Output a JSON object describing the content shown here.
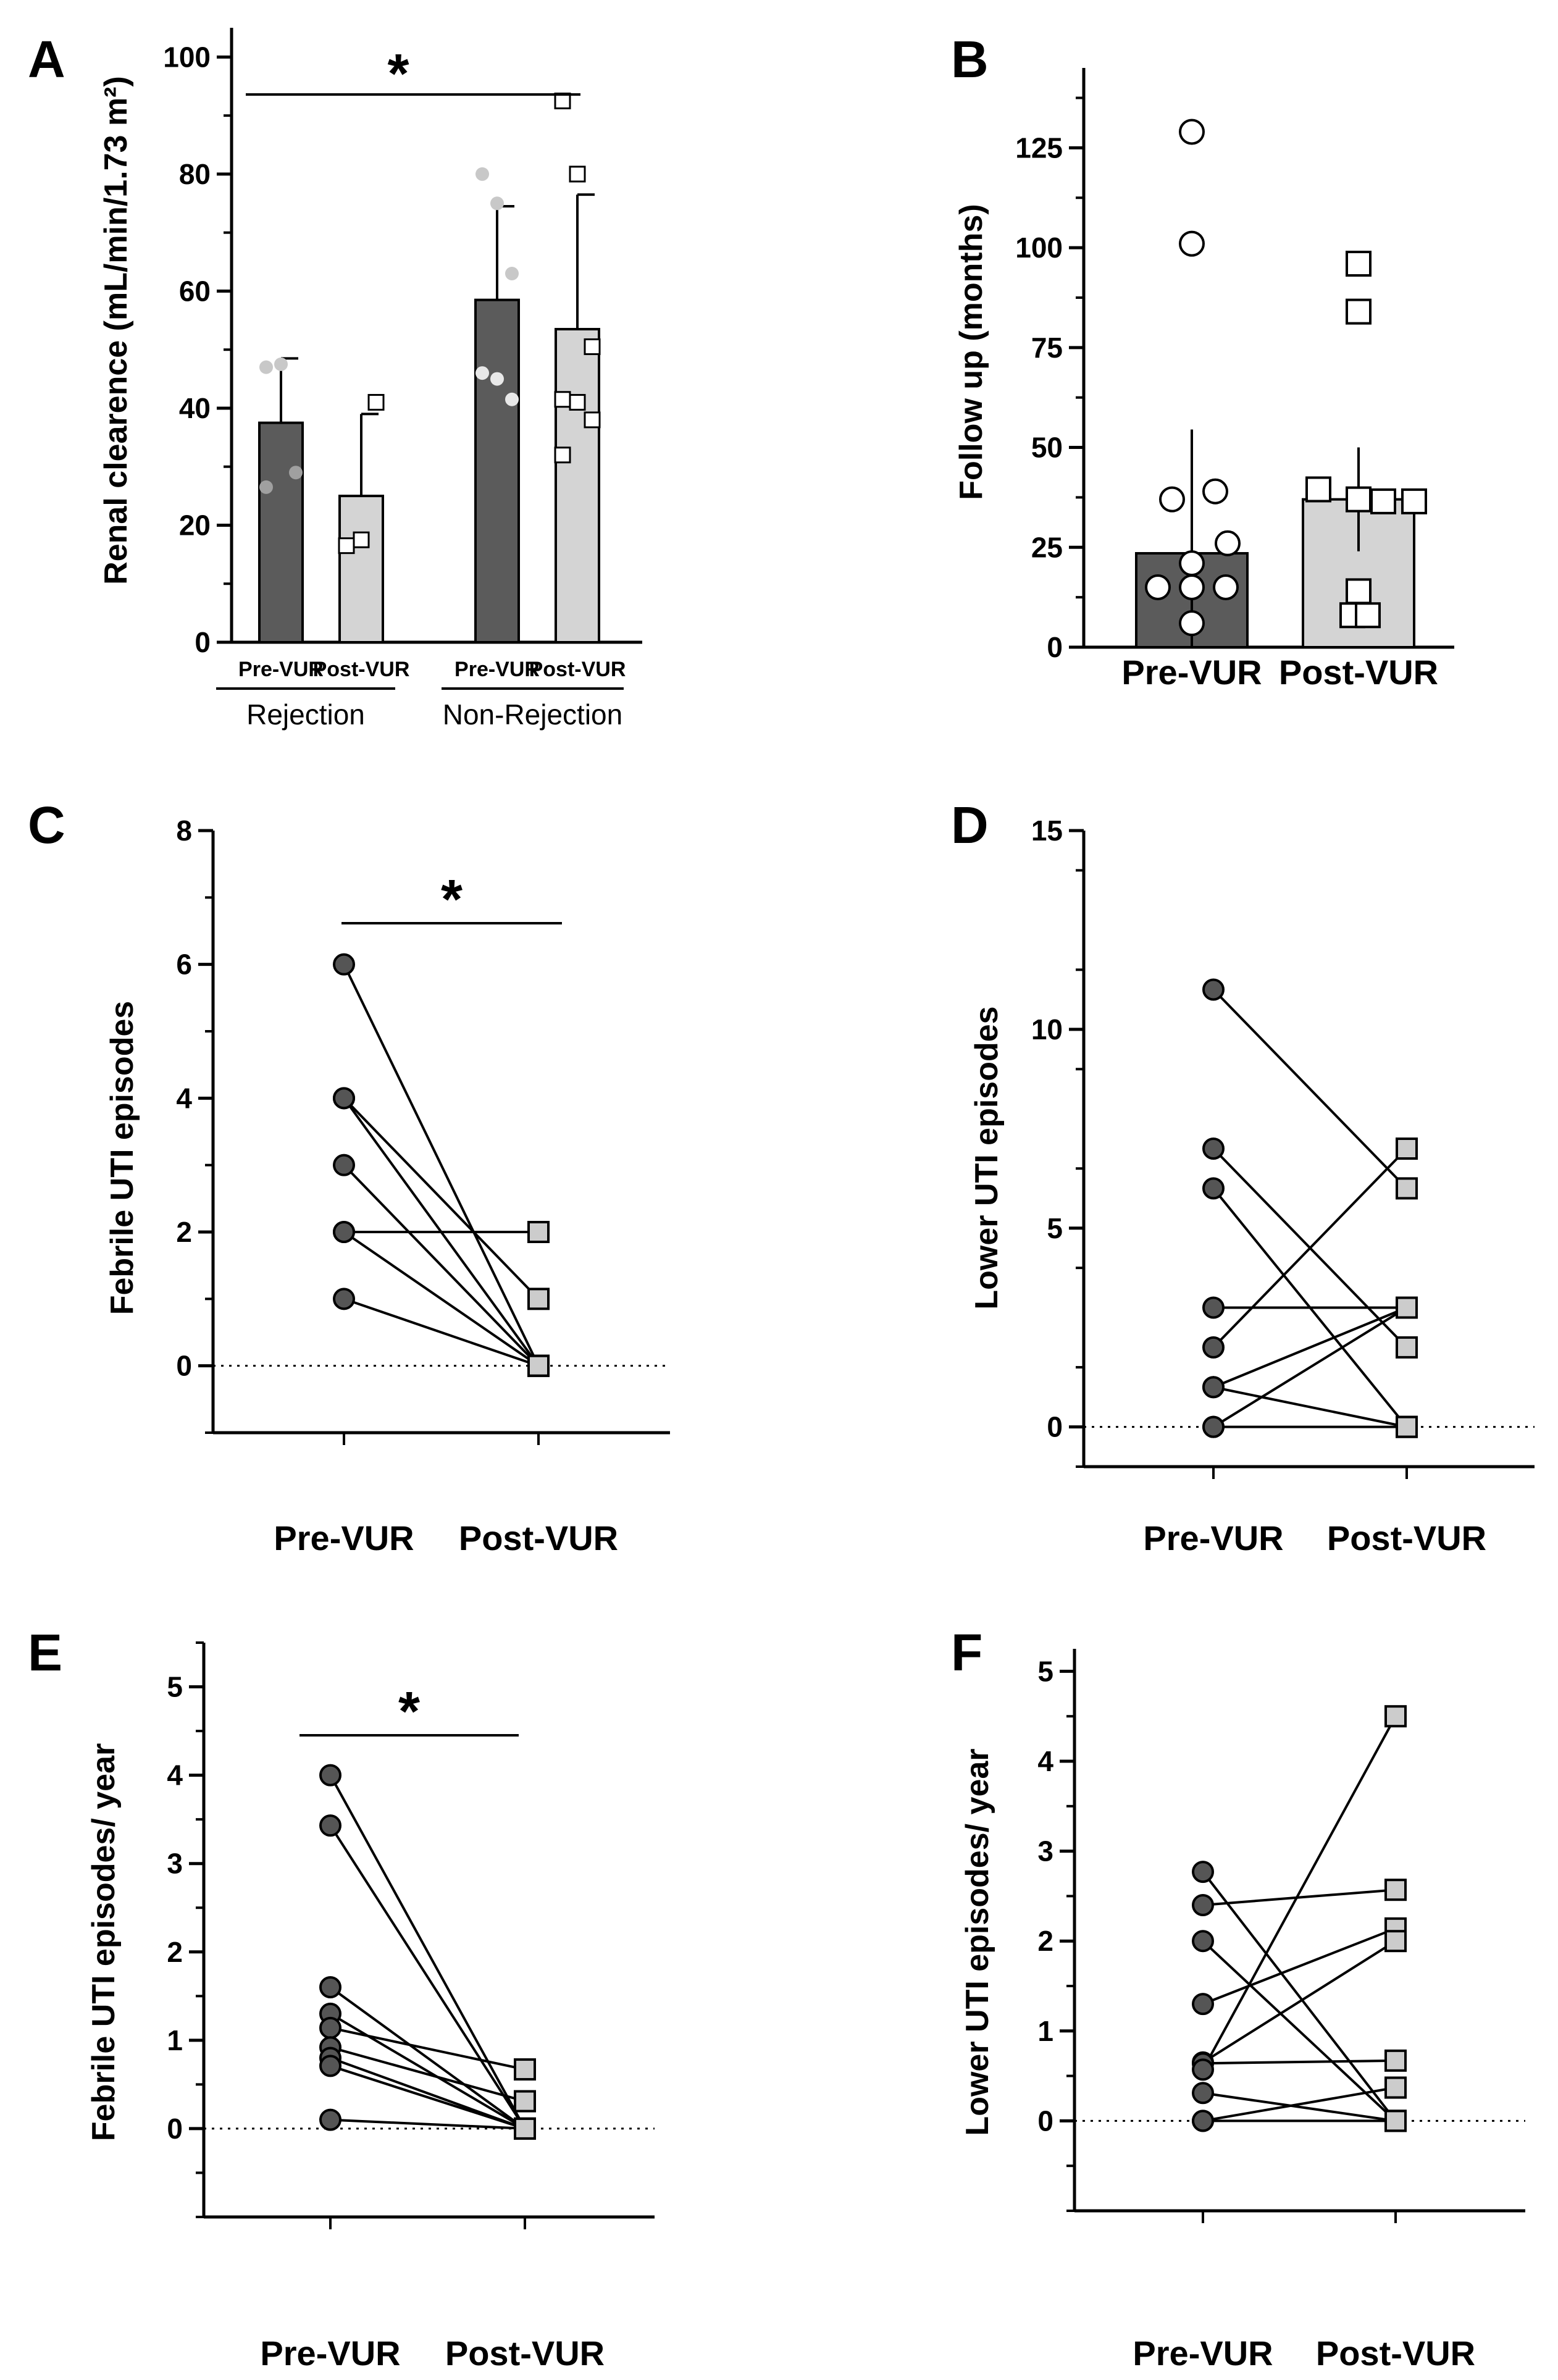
{
  "chart_data": [
    {
      "panel": "A",
      "type": "bar",
      "ylabel": "Renal clearence (mL/min/1.73 m²)",
      "ylim": [
        0,
        105
      ],
      "yticks": [
        0,
        20,
        40,
        60,
        80,
        100
      ],
      "groups": [
        "Rejection",
        "Non-Rejection"
      ],
      "categories": [
        "Pre-VUR",
        "Post-VUR",
        "Pre-VUR",
        "Post-VUR"
      ],
      "values": [
        37.5,
        25,
        58.5,
        53.5
      ],
      "errors": [
        11,
        14,
        16,
        23
      ],
      "colors": [
        "#5b5b5b",
        "#d4d4d4",
        "#5b5b5b",
        "#d4d4d4"
      ],
      "points": [
        [
          47,
          47.5,
          29,
          26.5
        ],
        [
          16.5,
          17.5,
          41
        ],
        [
          80,
          75,
          63,
          46,
          45,
          41.5
        ],
        [
          92.5,
          80,
          50.5,
          41.5,
          41,
          38,
          32
        ]
      ],
      "significance": "*"
    },
    {
      "panel": "B",
      "type": "bar",
      "ylabel": "Follow up (months)",
      "ylim": [
        0,
        145
      ],
      "yticks": [
        0,
        25,
        50,
        75,
        100,
        125
      ],
      "categories": [
        "Pre-VUR",
        "Post-VUR"
      ],
      "values": [
        23.5,
        37
      ],
      "errors": [
        31,
        13
      ],
      "colors": [
        "#5b5b5b",
        "#d4d4d4"
      ],
      "points": [
        [
          129,
          101,
          39,
          37,
          26,
          21,
          15,
          15,
          15,
          6
        ],
        [
          96,
          84,
          39.5,
          37,
          36.5,
          36.5,
          14,
          8,
          8
        ]
      ]
    },
    {
      "panel": "C",
      "type": "line",
      "ylabel": "Febrile UTI episodes",
      "ylim": [
        -1,
        8
      ],
      "yticks": [
        0,
        2,
        4,
        6,
        8
      ],
      "categories": [
        "Pre-VUR",
        "Post-VUR"
      ],
      "pairs": [
        [
          6,
          0
        ],
        [
          4,
          1
        ],
        [
          4,
          0
        ],
        [
          3,
          0
        ],
        [
          2,
          2
        ],
        [
          2,
          0
        ],
        [
          1,
          0
        ]
      ],
      "significance": "*"
    },
    {
      "panel": "D",
      "type": "line",
      "ylabel": "Lower UTI episodes",
      "ylim": [
        -1,
        15
      ],
      "yticks": [
        0,
        5,
        10,
        15
      ],
      "categories": [
        "Pre-VUR",
        "Post-VUR"
      ],
      "pairs": [
        [
          11,
          6
        ],
        [
          7,
          2
        ],
        [
          6,
          0
        ],
        [
          3,
          3
        ],
        [
          2,
          7
        ],
        [
          1,
          3
        ],
        [
          1,
          0
        ],
        [
          0,
          3
        ],
        [
          0,
          0
        ]
      ]
    },
    {
      "panel": "E",
      "type": "line",
      "ylabel": "Febrile UTI episodes/ year",
      "ylim": [
        -1,
        5.5
      ],
      "yticks": [
        0,
        1,
        2,
        3,
        4,
        5
      ],
      "categories": [
        "Pre-VUR",
        "Post-VUR"
      ],
      "pairs": [
        [
          4,
          0
        ],
        [
          3.43,
          0
        ],
        [
          1.6,
          0
        ],
        [
          1.3,
          0
        ],
        [
          1.14,
          0.67
        ],
        [
          0.92,
          0.31
        ],
        [
          0.8,
          0
        ],
        [
          0.71,
          0
        ],
        [
          0.1,
          0
        ]
      ],
      "significance": "*"
    },
    {
      "panel": "F",
      "type": "line",
      "ylabel": "Lower UTI episodes/ year",
      "ylim": [
        -1,
        5.25
      ],
      "yticks": [
        0,
        1,
        2,
        3,
        4,
        5
      ],
      "categories": [
        "Pre-VUR",
        "Post-VUR"
      ],
      "pairs": [
        [
          2.77,
          0
        ],
        [
          2.4,
          2.57
        ],
        [
          2,
          0
        ],
        [
          1.3,
          2.14
        ],
        [
          0.65,
          2
        ],
        [
          0.64,
          0.67
        ],
        [
          0.57,
          4.5
        ],
        [
          0.31,
          0
        ],
        [
          0,
          0.37
        ],
        [
          0,
          0
        ]
      ]
    }
  ]
}
